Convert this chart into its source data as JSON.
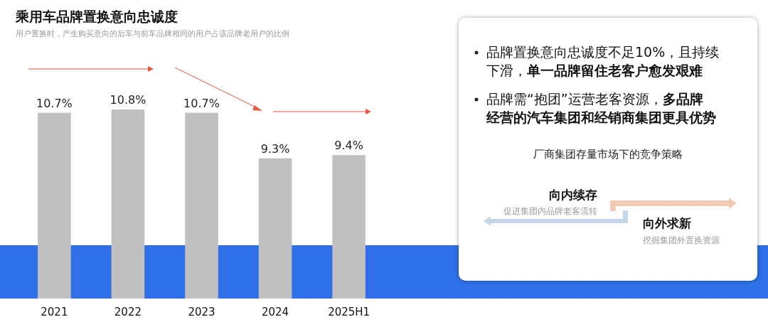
{
  "chart_data": [
    {
      "type": "bar",
      "title": "乘用车品牌置换意向忠诚度",
      "subtitle": "用户置换时，产生购买意向的后车与前车品牌相同的用户占该品牌老用户的比例",
      "categories": [
        "2021",
        "2022",
        "2023",
        "2024",
        "2025H1"
      ],
      "values": [
        10.7,
        10.8,
        10.7,
        9.3,
        9.4
      ],
      "value_labels": [
        "10.7%",
        "10.8%",
        "10.7%",
        "9.3%",
        "9.4%"
      ],
      "color": "#c0c0c0",
      "ylim": [
        5,
        10.8
      ],
      "tick_labels": "x"
    },
    {
      "type": "other",
      "annotations": [
        "品牌置换意向忠诚度不足10%，且持续下滑，",
        "单一品牌留住老客户愈发艰难",
        "品牌需“抱团”运营老客资源，",
        "多品牌经营的汽车集团和经销商集团更具优势",
        "厂商集团存量市场下的竞争策略",
        "向内续存",
        "促进集团内品牌老客流转",
        "向外求新",
        "挖掘集团外置换资源"
      ]
    }
  ]
}
